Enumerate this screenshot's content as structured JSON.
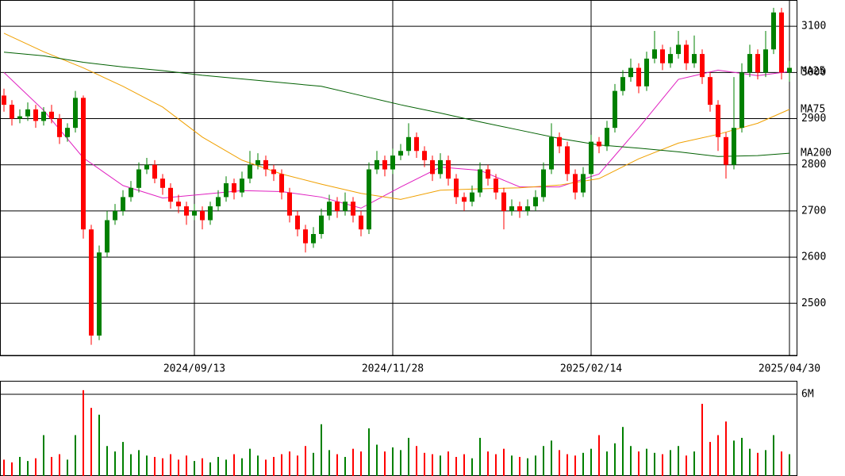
{
  "chart_data": [
    {
      "type": "candlestick",
      "up_color": "#008000",
      "down_color": "#ff0000",
      "xlim": [
        -0.5,
        100
      ],
      "ylim": [
        2387,
        3157
      ],
      "xticks": [
        {
          "value": 24,
          "label": "2024/09/13"
        },
        {
          "value": 49,
          "label": "2024/11/28"
        },
        {
          "value": 74,
          "label": "2025/02/14"
        },
        {
          "value": 99,
          "label": "2025/04/30"
        }
      ],
      "yticks": [
        2500,
        2600,
        2700,
        2800,
        2900,
        3000,
        3100
      ],
      "grid": true,
      "open": [
        2950,
        2930,
        2900,
        2905,
        2920,
        2895,
        2915,
        2900,
        2860,
        2880,
        2945,
        2660,
        2430,
        2610,
        2680,
        2700,
        2730,
        2750,
        2790,
        2800,
        2770,
        2750,
        2720,
        2710,
        2690,
        2700,
        2680,
        2710,
        2730,
        2760,
        2740,
        2770,
        2800,
        2810,
        2790,
        2780,
        2740,
        2690,
        2660,
        2630,
        2650,
        2690,
        2720,
        2700,
        2720,
        2690,
        2660,
        2790,
        2810,
        2790,
        2820,
        2830,
        2860,
        2830,
        2810,
        2780,
        2810,
        2770,
        2730,
        2720,
        2740,
        2790,
        2770,
        2740,
        2700,
        2710,
        2700,
        2710,
        2730,
        2790,
        2860,
        2840,
        2780,
        2740,
        2780,
        2850,
        2840,
        2880,
        2960,
        2990,
        3010,
        2970,
        3030,
        3050,
        3020,
        3040,
        3060,
        3020,
        3040,
        2990,
        2930,
        2860,
        2800,
        2880,
        3000,
        3040,
        3000,
        3050,
        3130,
        3000
      ],
      "high": [
        2965,
        2940,
        2920,
        2935,
        2930,
        2925,
        2930,
        2910,
        2890,
        2960,
        2950,
        2670,
        2625,
        2700,
        2715,
        2745,
        2765,
        2805,
        2815,
        2810,
        2780,
        2760,
        2735,
        2720,
        2715,
        2710,
        2720,
        2745,
        2775,
        2770,
        2785,
        2830,
        2825,
        2820,
        2800,
        2790,
        2750,
        2700,
        2670,
        2665,
        2705,
        2735,
        2730,
        2740,
        2730,
        2700,
        2805,
        2830,
        2820,
        2835,
        2845,
        2890,
        2870,
        2840,
        2820,
        2825,
        2820,
        2780,
        2740,
        2755,
        2805,
        2800,
        2780,
        2750,
        2725,
        2720,
        2725,
        2745,
        2805,
        2890,
        2870,
        2850,
        2790,
        2795,
        2865,
        2860,
        2895,
        2975,
        3005,
        3030,
        3020,
        3045,
        3090,
        3060,
        3055,
        3090,
        3070,
        3080,
        3050,
        3000,
        2940,
        2870,
        2990,
        3020,
        3060,
        3050,
        3090,
        3140,
        3140,
        3025
      ],
      "low": [
        2915,
        2885,
        2890,
        2895,
        2880,
        2885,
        2890,
        2845,
        2850,
        2870,
        2640,
        2410,
        2420,
        2600,
        2670,
        2690,
        2720,
        2740,
        2780,
        2760,
        2735,
        2705,
        2695,
        2670,
        2680,
        2660,
        2670,
        2700,
        2720,
        2725,
        2730,
        2760,
        2790,
        2775,
        2765,
        2725,
        2675,
        2645,
        2610,
        2620,
        2640,
        2680,
        2685,
        2690,
        2675,
        2645,
        2650,
        2780,
        2775,
        2780,
        2810,
        2820,
        2815,
        2795,
        2765,
        2770,
        2755,
        2715,
        2700,
        2710,
        2730,
        2755,
        2725,
        2660,
        2690,
        2685,
        2690,
        2700,
        2720,
        2780,
        2825,
        2765,
        2725,
        2730,
        2770,
        2825,
        2830,
        2870,
        2950,
        2980,
        2955,
        2960,
        3020,
        3005,
        3010,
        3030,
        3005,
        3010,
        2975,
        2915,
        2830,
        2770,
        2790,
        2870,
        2990,
        2985,
        2990,
        3040,
        2985,
        2980
      ],
      "close": [
        2930,
        2900,
        2905,
        2920,
        2895,
        2915,
        2900,
        2860,
        2880,
        2945,
        2660,
        2430,
        2610,
        2680,
        2700,
        2730,
        2750,
        2790,
        2800,
        2770,
        2750,
        2720,
        2710,
        2690,
        2700,
        2680,
        2710,
        2730,
        2760,
        2740,
        2770,
        2800,
        2810,
        2790,
        2780,
        2740,
        2690,
        2660,
        2630,
        2650,
        2690,
        2720,
        2700,
        2720,
        2690,
        2660,
        2790,
        2810,
        2790,
        2820,
        2830,
        2860,
        2830,
        2810,
        2780,
        2810,
        2770,
        2730,
        2720,
        2740,
        2790,
        2770,
        2740,
        2700,
        2710,
        2700,
        2710,
        2730,
        2790,
        2860,
        2840,
        2780,
        2740,
        2780,
        2850,
        2840,
        2880,
        2960,
        2990,
        3010,
        2970,
        3030,
        3050,
        3020,
        3040,
        3060,
        3020,
        3040,
        2990,
        2930,
        2860,
        2800,
        2880,
        3000,
        3040,
        3000,
        3050,
        3130,
        3000,
        3010
      ],
      "ma_x": [
        0,
        5,
        10,
        15,
        20,
        25,
        30,
        35,
        40,
        45,
        50,
        55,
        60,
        65,
        70,
        75,
        80,
        85,
        90,
        95,
        99
      ],
      "ma": [
        {
          "name": "MA25",
          "color": "#e020c0",
          "values": [
            3000,
            2918,
            2815,
            2755,
            2728,
            2736,
            2744,
            2742,
            2730,
            2706,
            2752,
            2795,
            2788,
            2752,
            2752,
            2780,
            2880,
            2985,
            3005,
            2993,
            3002
          ]
        },
        {
          "name": "MA75",
          "color": "#f0a000",
          "values": [
            3085,
            3045,
            3010,
            2970,
            2925,
            2860,
            2810,
            2780,
            2758,
            2738,
            2725,
            2745,
            2748,
            2750,
            2756,
            2770,
            2813,
            2847,
            2866,
            2890,
            2920
          ]
        },
        {
          "name": "MA200",
          "color": "#006000",
          "values": [
            3044,
            3036,
            3022,
            3012,
            3004,
            2994,
            2986,
            2978,
            2970,
            2950,
            2930,
            2912,
            2893,
            2875,
            2857,
            2843,
            2836,
            2828,
            2818,
            2820,
            2825
          ]
        }
      ]
    },
    {
      "type": "bar",
      "ylim": [
        0,
        6.99
      ],
      "yticks": [
        {
          "value": 6,
          "label": "6M"
        }
      ],
      "grid": true,
      "values": [
        1.2,
        1.0,
        1.4,
        1.1,
        1.3,
        3.0,
        1.4,
        1.6,
        1.2,
        3.0,
        6.3,
        5.0,
        4.5,
        2.2,
        1.8,
        2.5,
        1.6,
        1.9,
        1.5,
        1.4,
        1.3,
        1.6,
        1.2,
        1.5,
        1.1,
        1.3,
        1.0,
        1.4,
        1.2,
        1.6,
        1.3,
        2.0,
        1.5,
        1.2,
        1.4,
        1.6,
        1.8,
        1.5,
        2.2,
        1.7,
        3.8,
        1.9,
        1.6,
        1.4,
        2.0,
        1.8,
        3.5,
        2.3,
        1.8,
        2.1,
        1.9,
        2.8,
        2.2,
        1.7,
        1.6,
        1.5,
        1.8,
        1.4,
        1.6,
        1.3,
        2.8,
        1.8,
        1.6,
        2.0,
        1.5,
        1.4,
        1.3,
        1.5,
        2.2,
        2.6,
        1.9,
        1.6,
        1.5,
        1.7,
        2.0,
        3.0,
        1.8,
        2.4,
        3.6,
        2.2,
        1.8,
        2.0,
        1.7,
        1.6,
        1.9,
        2.2,
        1.5,
        1.8,
        5.3,
        2.5,
        3.0,
        4.0,
        2.6,
        2.8,
        2.0,
        1.7,
        1.9,
        3.0,
        1.8,
        1.6
      ]
    }
  ]
}
